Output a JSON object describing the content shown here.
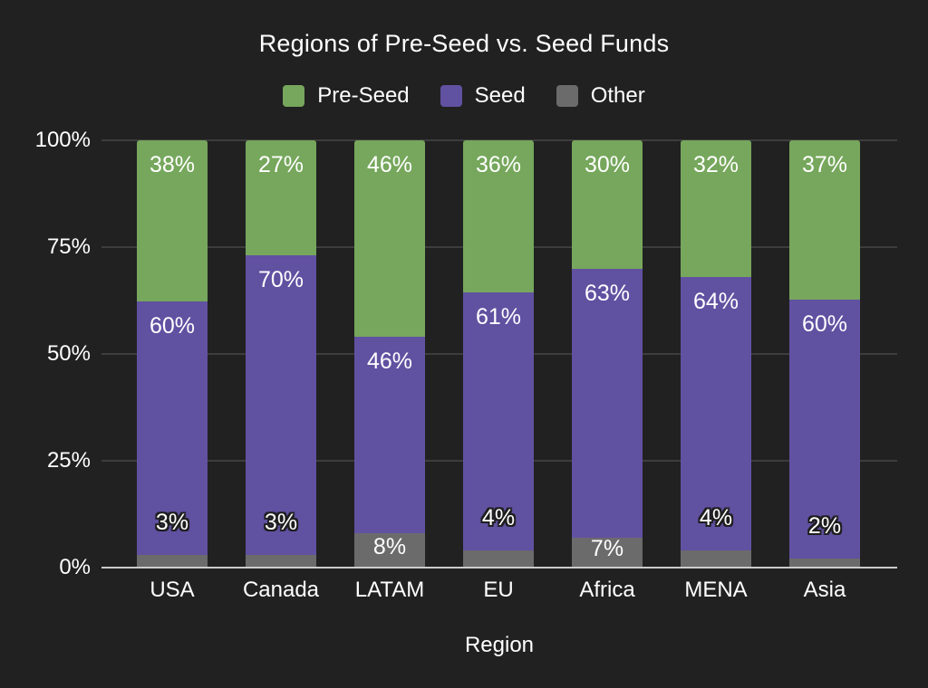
{
  "chart_data": {
    "type": "bar",
    "stacked": true,
    "normalized_percent": true,
    "title": "Regions of Pre-Seed vs. Seed Funds",
    "xlabel": "Region",
    "ylabel": "",
    "categories": [
      "USA",
      "Canada",
      "LATAM",
      "EU",
      "Africa",
      "MENA",
      "Asia"
    ],
    "series": [
      {
        "name": "Pre-Seed",
        "color": "#76a75c",
        "values": [
          38,
          27,
          46,
          36,
          30,
          32,
          37
        ]
      },
      {
        "name": "Seed",
        "color": "#6151a1",
        "values": [
          60,
          70,
          46,
          61,
          63,
          64,
          60
        ]
      },
      {
        "name": "Other",
        "color": "#6b6b6b",
        "values": [
          3,
          3,
          8,
          4,
          7,
          4,
          2
        ]
      }
    ],
    "yticks": [
      {
        "label": "0%",
        "value": 0
      },
      {
        "label": "25%",
        "value": 25
      },
      {
        "label": "50%",
        "value": 50
      },
      {
        "label": "75%",
        "value": 75
      },
      {
        "label": "100%",
        "value": 100
      }
    ],
    "ylim": [
      0,
      100
    ],
    "grid": true,
    "legend_position": "top",
    "label_format": "{value}%"
  },
  "colors": {
    "background": "#212121",
    "text": "#ffffff",
    "gridline": "#3d3d3d",
    "axis_line": "#cccccc",
    "label_outline": "#1e1e1e"
  }
}
